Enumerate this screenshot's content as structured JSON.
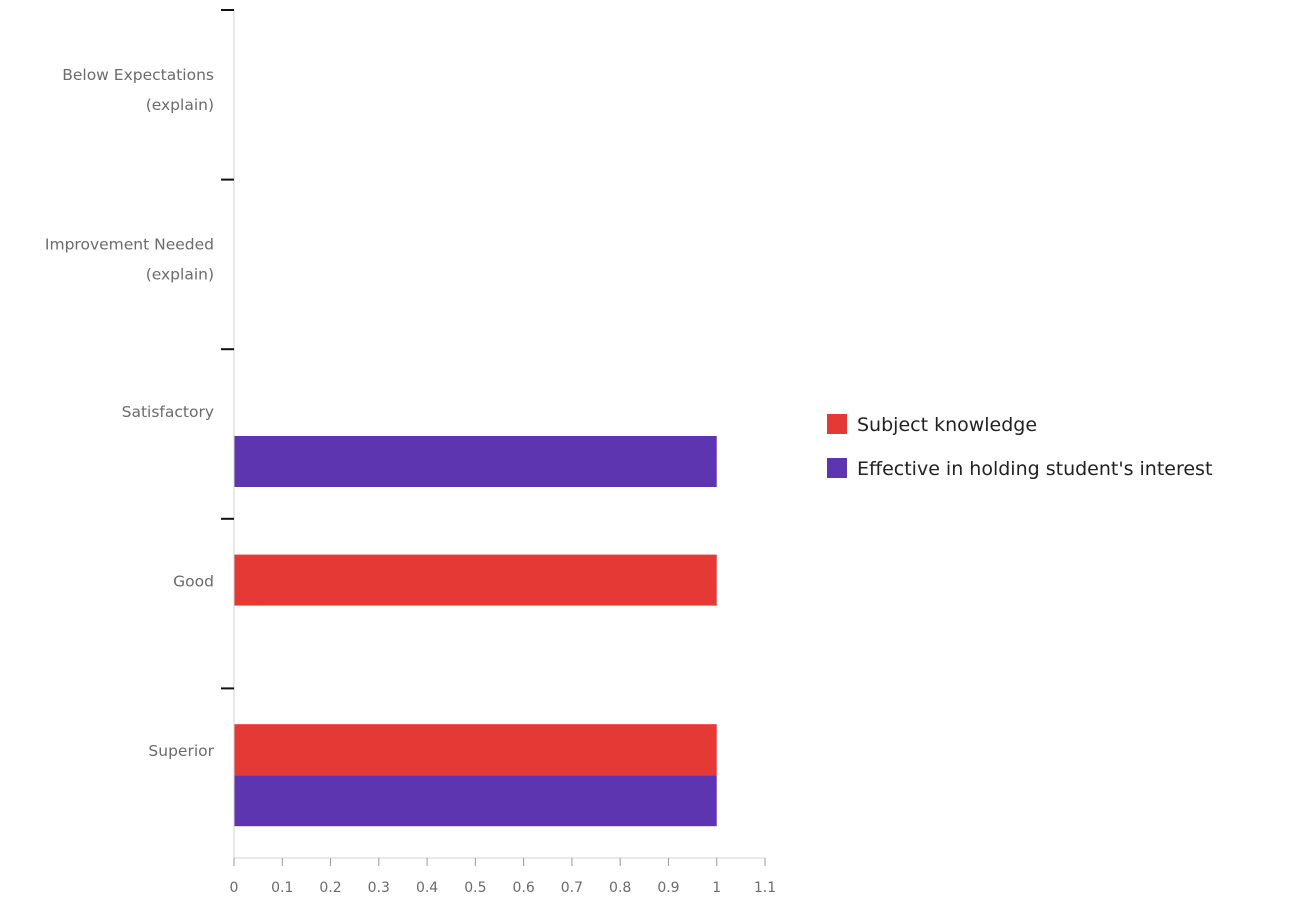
{
  "chart_data": {
    "type": "bar",
    "orientation": "horizontal",
    "title": "",
    "xlabel": "",
    "ylabel": "",
    "categories": [
      "Below Expectations (explain)",
      "Improvement Needed (explain)",
      "Satisfactory",
      "Good",
      "Superior"
    ],
    "category_lines": [
      [
        "Below Expectations",
        "(explain)"
      ],
      [
        "Improvement Needed",
        "(explain)"
      ],
      [
        "Satisfactory"
      ],
      [
        "Good"
      ],
      [
        "Superior"
      ]
    ],
    "series": [
      {
        "name": "Subject knowledge",
        "color": "#e53935",
        "values": [
          0,
          0,
          0,
          1,
          1
        ]
      },
      {
        "name": "Effective in holding student's interest",
        "color": "#5e35b1",
        "values": [
          0,
          0,
          1,
          0,
          1
        ]
      }
    ],
    "xlim": [
      0,
      1.1
    ],
    "xticks": [
      "0",
      "0.1",
      "0.2",
      "0.3",
      "0.4",
      "0.5",
      "0.6",
      "0.7",
      "0.8",
      "0.9",
      "1",
      "1.1"
    ],
    "grid": false,
    "legend_position": "right"
  }
}
